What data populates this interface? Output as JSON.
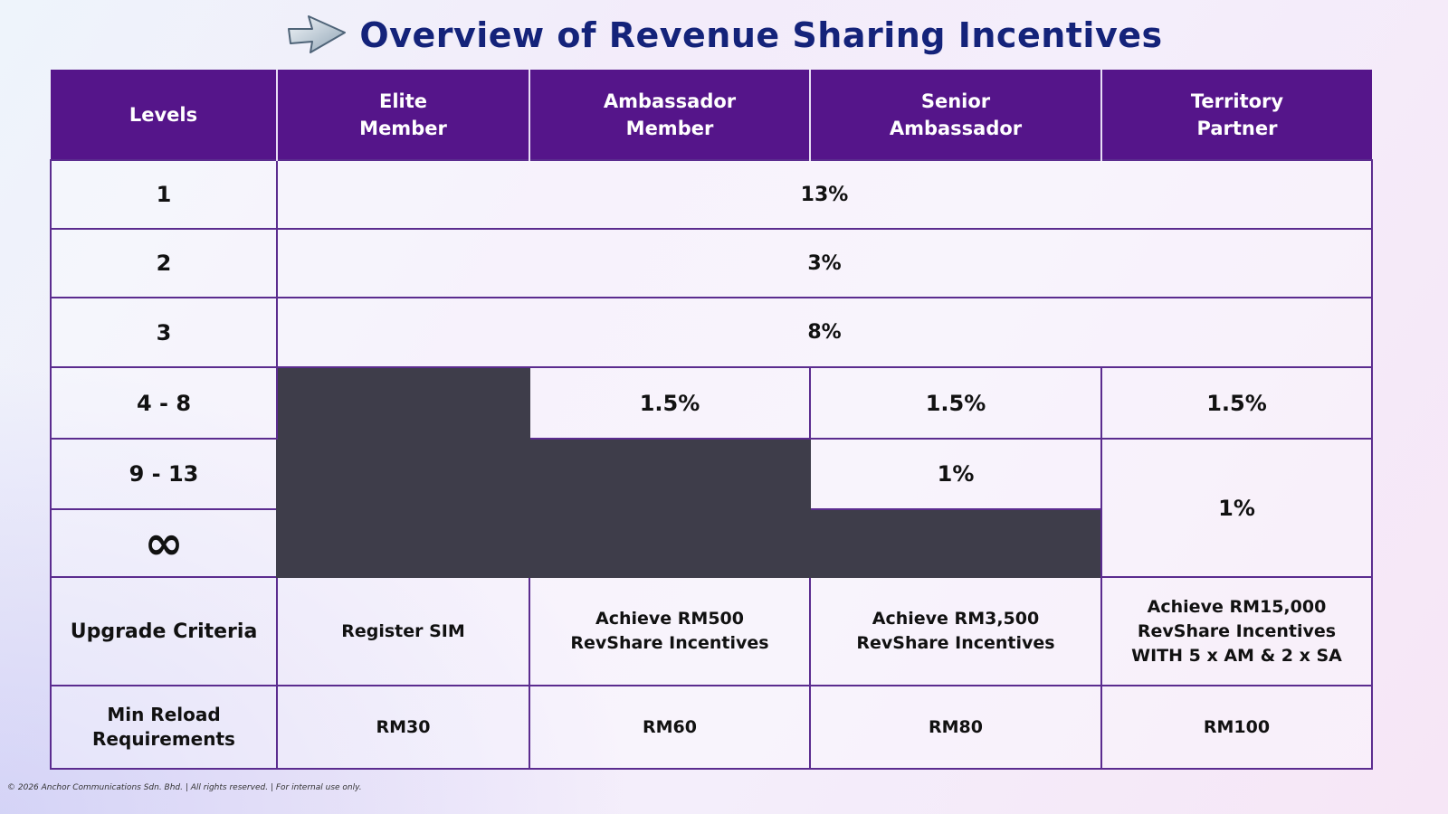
{
  "title": "Overview of Revenue Sharing Incentives",
  "title_icon": "arrow-right-icon",
  "colors": {
    "header": "#55158a",
    "blocked": "#3e3d4a",
    "title": "#14237a",
    "border": "#5b2c8f"
  },
  "headers": [
    "Levels",
    "Elite\nMember",
    "Ambassador\nMember",
    "Senior\nAmbassador",
    "Territory\nPartner"
  ],
  "rows": {
    "l1": {
      "level": "1",
      "value": "13%"
    },
    "l2": {
      "level": "2",
      "value": "3%"
    },
    "l3": {
      "level": "3",
      "value": "8%"
    },
    "l4_8": {
      "level": "4 - 8",
      "ambassador": "1.5%",
      "senior": "1.5%",
      "territory": "1.5%"
    },
    "l9_13": {
      "level": "9 - 13",
      "senior": "1%",
      "territory": "1%"
    },
    "linf": {
      "level": "∞"
    },
    "upgrade": {
      "label": "Upgrade Criteria",
      "elite": "Register SIM",
      "ambassador": "Achieve RM500\nRevShare Incentives",
      "senior": "Achieve RM3,500\nRevShare Incentives",
      "territory": "Achieve RM15,000\nRevShare Incentives\nWITH 5 x AM & 2 x SA"
    },
    "reload": {
      "label": "Min Reload\nRequirements",
      "elite": "RM30",
      "ambassador": "RM60",
      "senior": "RM80",
      "territory": "RM100"
    }
  },
  "footer": "© 2026 Anchor Communications Sdn. Bhd. | All rights reserved. | For internal use only."
}
